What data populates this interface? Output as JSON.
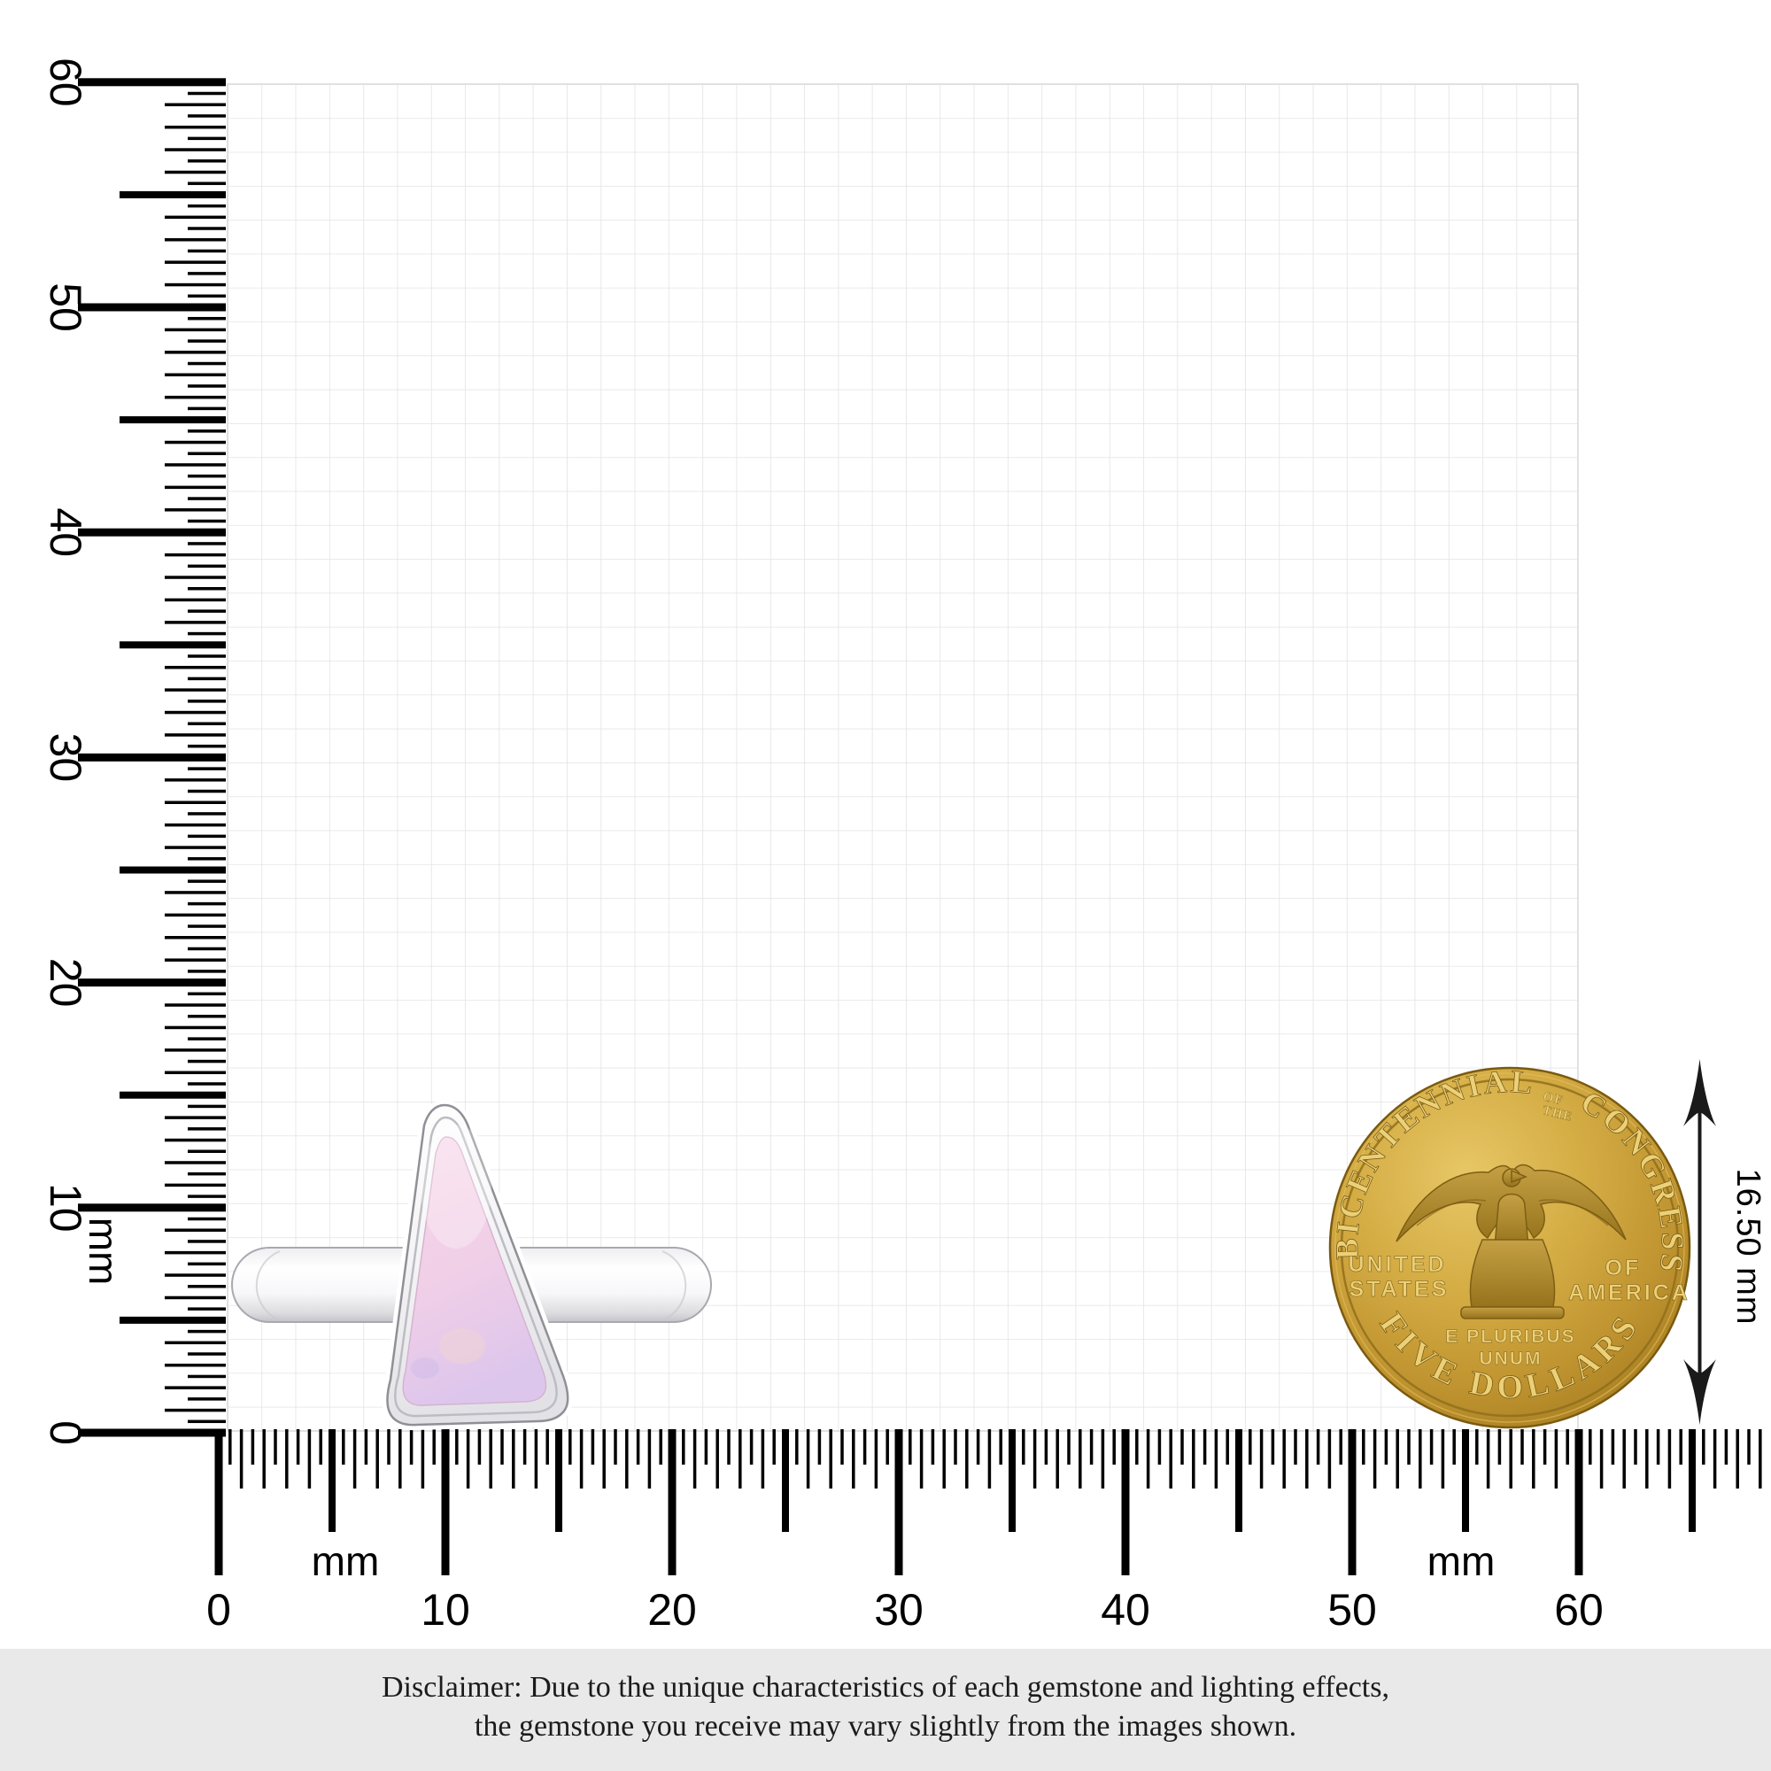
{
  "rulers": {
    "unit": "mm",
    "range_mm": [
      0,
      60
    ],
    "label_step_mm": 10,
    "minor_step_mm": 0.5,
    "vertical": {
      "tick_labels": [
        "0",
        "10",
        "20",
        "30",
        "40",
        "50",
        "60"
      ],
      "unit_label": "mm"
    },
    "horizontal": {
      "tick_labels": [
        "0",
        "10",
        "20",
        "30",
        "40",
        "50",
        "60"
      ],
      "unit_label_left": "mm",
      "unit_label_right": "mm"
    }
  },
  "measurement": {
    "coin_diameter_label": "16.50 mm"
  },
  "coin": {
    "legend_arc_left": "BICENTENNIAL",
    "legend_arc_small_top": "OF",
    "legend_arc_small_bottom": "THE",
    "legend_arc_right": "CONGRESS",
    "field_left_line1": "UNITED",
    "field_left_line2": "STATES",
    "field_right_line1": "OF",
    "field_right_line2": "AMERICA",
    "motto_line1": "E PLURIBUS",
    "motto_line2": "UNUM",
    "legend_bottom": "FIVE DOLLARS"
  },
  "disclaimer": {
    "line1": "Disclaimer: Due to the unique characteristics of each gemstone and lighting effects,",
    "line2": "the gemstone you receive may vary slightly from the images shown."
  },
  "colors": {
    "ink": "#000000",
    "grid_line": "#e3e3e6",
    "grid_border": "#d9d9db",
    "gold": "#c79e35",
    "gold_light": "#e7c766",
    "gold_dark": "#93691a",
    "gold_letter": "#ecd077",
    "silver": "#f2f2f4",
    "silver_dark": "#a2a2a9",
    "stone_pink": "#f4d3e8",
    "stone_lavender": "#ddc6ec",
    "disclaimer_bg": "#e9e9e9",
    "disclaimer_ink": "#1c1c1c"
  }
}
